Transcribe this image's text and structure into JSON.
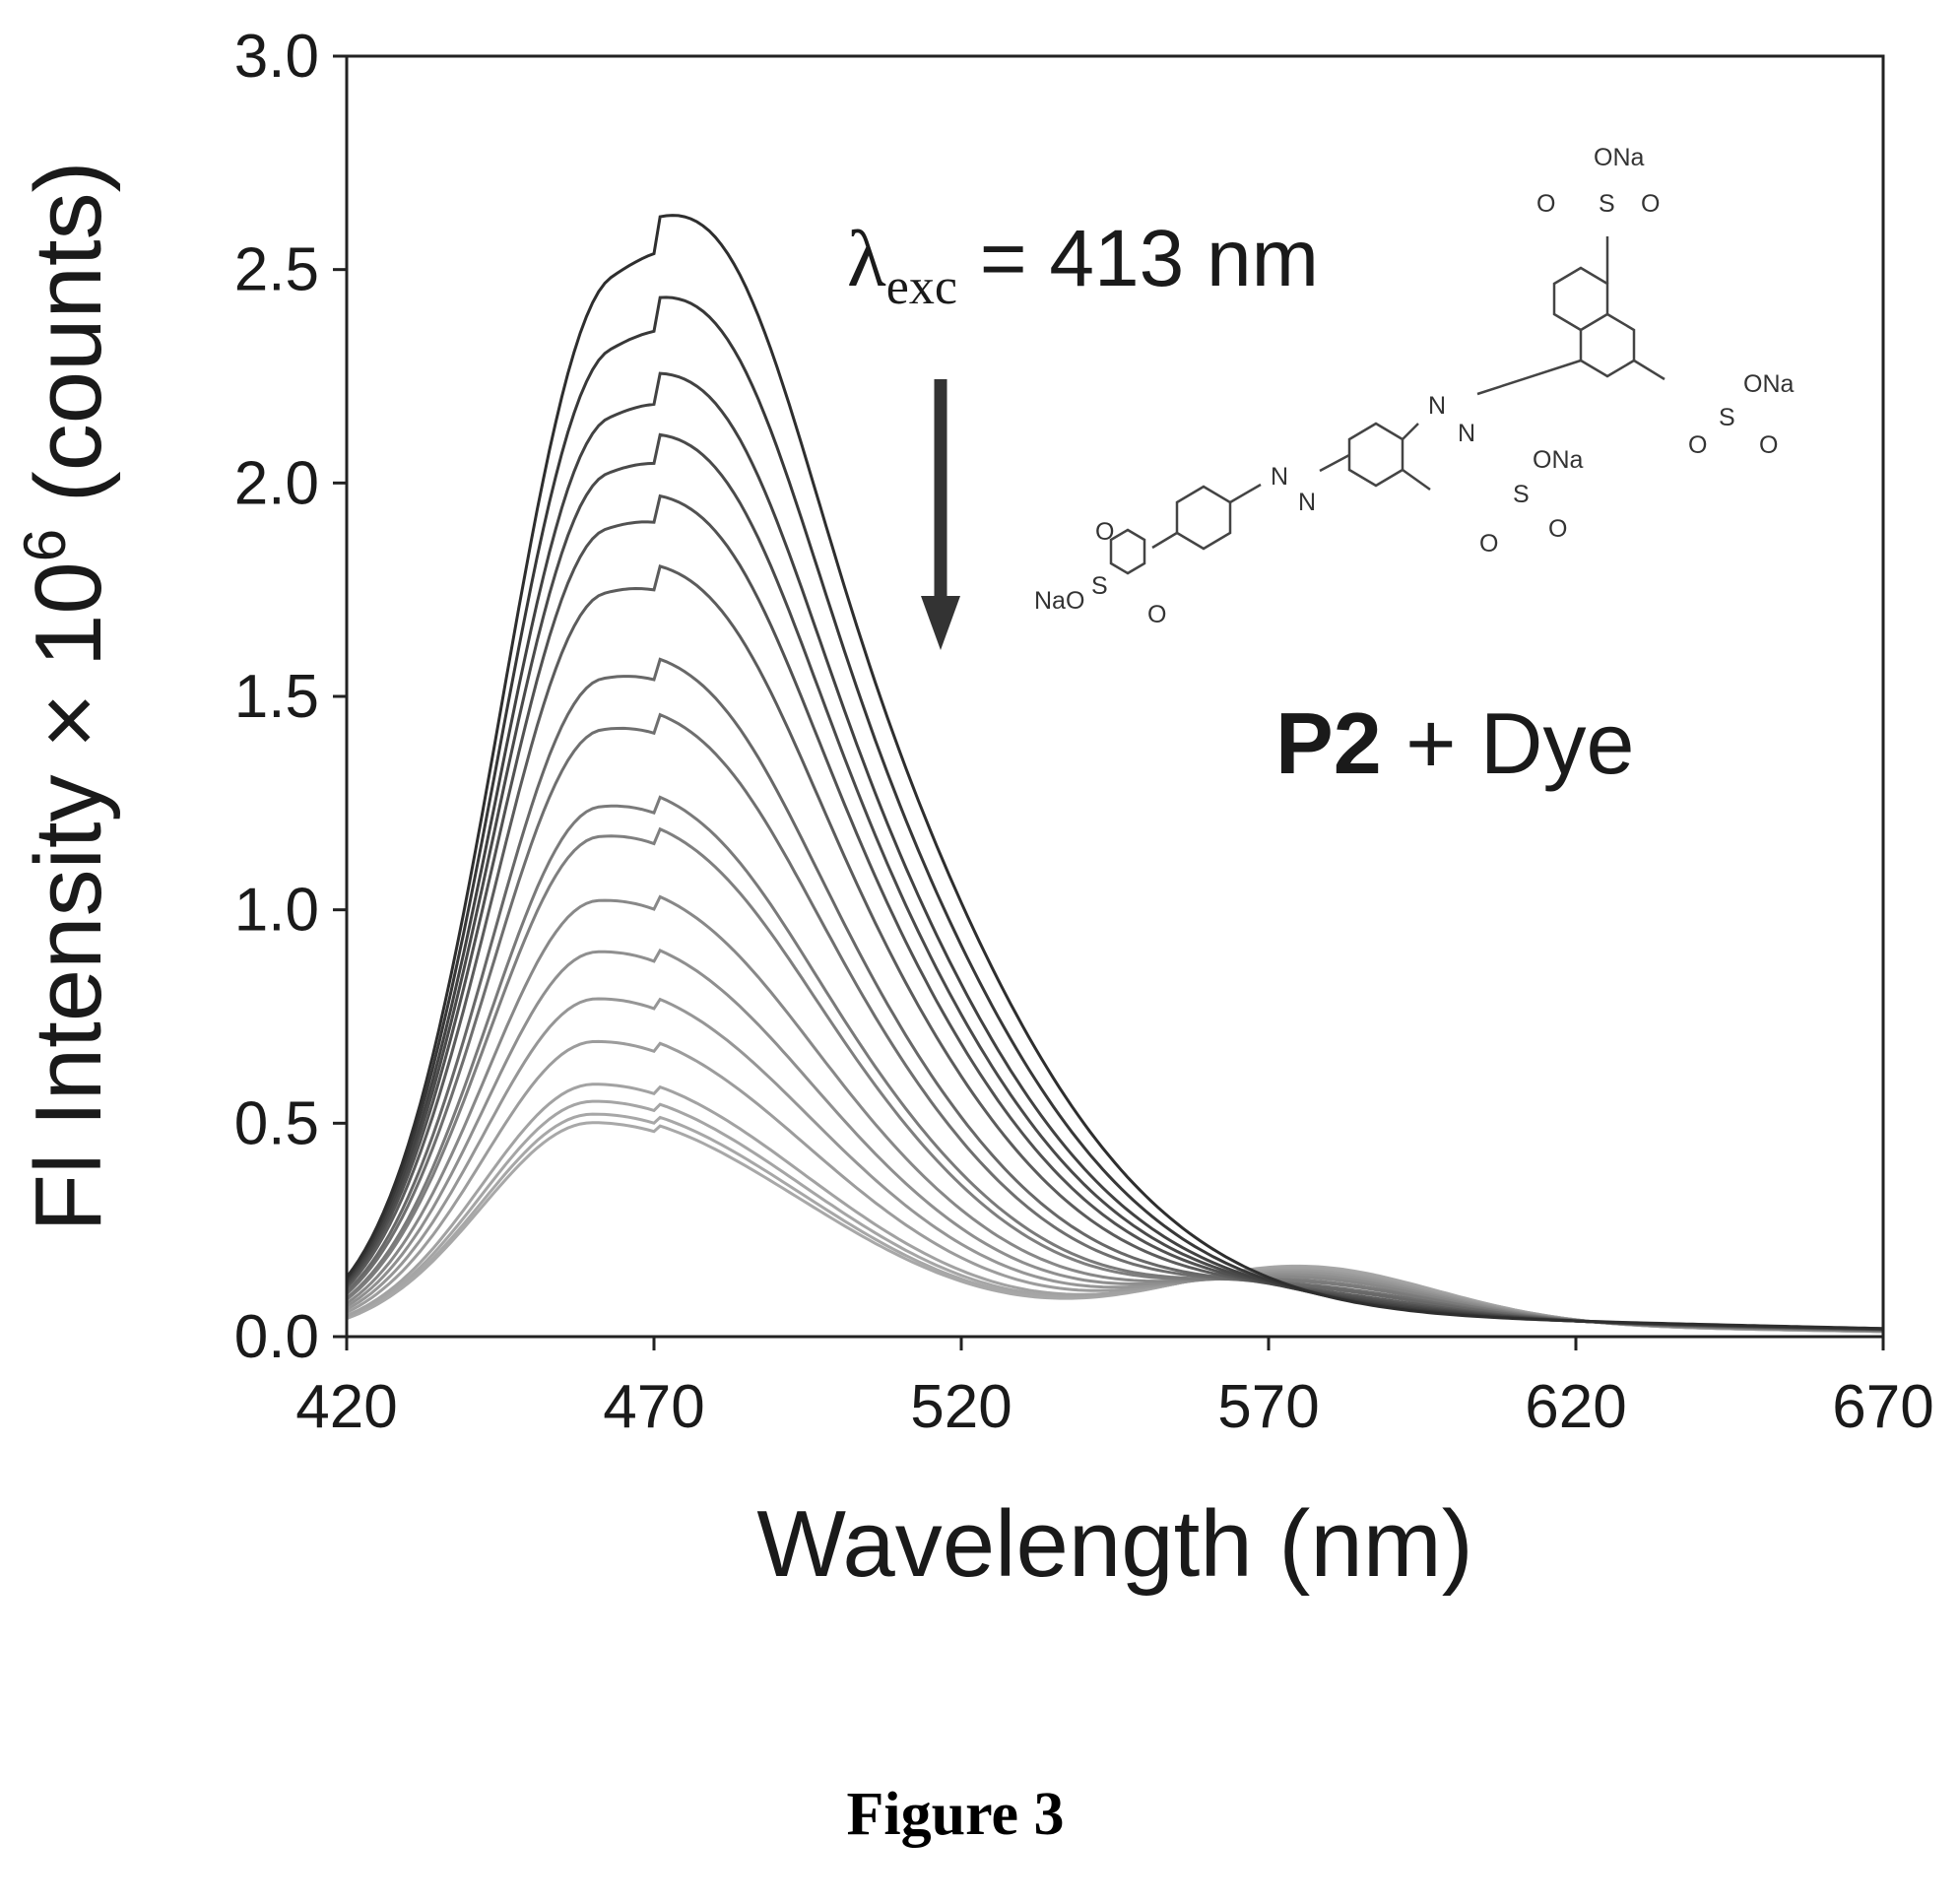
{
  "chart_data": {
    "type": "line",
    "title": "",
    "xlabel": "Wavelength (nm)",
    "ylabel_prefix": "Fl Intensity × 10",
    "ylabel_exponent": "6",
    "ylabel_suffix": " (counts)",
    "xlim": [
      420,
      670
    ],
    "ylim": [
      0,
      3.0
    ],
    "x_ticks": [
      "420",
      "470",
      "520",
      "570",
      "620",
      "670"
    ],
    "y_ticks": [
      "0.0",
      "0.5",
      "1.0",
      "1.5",
      "2.0",
      "2.5",
      "3.0"
    ],
    "grid": false,
    "legend": "none",
    "series_count": 18,
    "peak_wavelength": 460,
    "series_peak_values": [
      2.48,
      2.31,
      2.15,
      2.02,
      1.89,
      1.74,
      1.54,
      1.42,
      1.24,
      1.17,
      1.02,
      0.9,
      0.79,
      0.69,
      0.59,
      0.55,
      0.52,
      0.5
    ],
    "color_darkest": "#2e2e2e",
    "color_lightest": "#a8a8a8"
  },
  "annotations": {
    "lambda_symbol": "λ",
    "lambda_subscript": "exc",
    "excitation_text": " = 413 nm",
    "sample_bold": "P2",
    "sample_rest": " + Dye",
    "arrow_direction": "down"
  },
  "structure": {
    "labels": [
      "ONa",
      "O",
      "S",
      "O",
      "ONa",
      "S",
      "O",
      "O",
      "ONa",
      "S",
      "O",
      "O",
      "NaO",
      "S",
      "O",
      "O",
      "N",
      "N",
      "N",
      "N"
    ]
  },
  "caption": "Figure 3"
}
